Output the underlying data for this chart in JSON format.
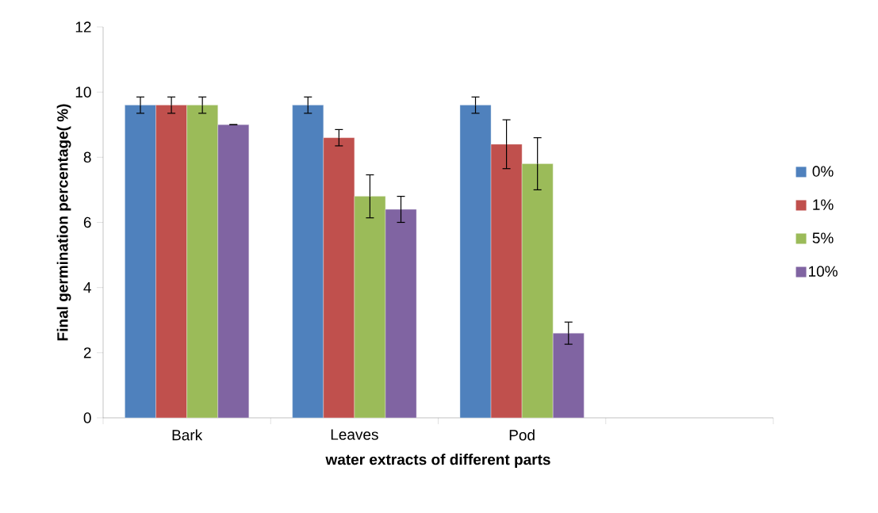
{
  "chart_data": {
    "type": "bar",
    "xlabel": "water extracts of different parts",
    "ylabel": "Final germination percentage( %)",
    "categories": [
      "Bark",
      "Leaves",
      "Pod",
      null
    ],
    "series": [
      {
        "name": "0%",
        "color": "#4f81bd",
        "values": [
          9.6,
          9.6,
          9.6,
          null
        ],
        "errors": [
          0.25,
          0.25,
          0.25,
          null
        ]
      },
      {
        "name": "1%",
        "color": "#c0504d",
        "values": [
          9.6,
          8.6,
          8.4,
          null
        ],
        "errors": [
          0.25,
          0.25,
          0.75,
          null
        ]
      },
      {
        "name": "5%",
        "color": "#9bbb59",
        "values": [
          9.6,
          6.8,
          7.8,
          null
        ],
        "errors": [
          0.25,
          0.66,
          0.8,
          null
        ]
      },
      {
        "name": "10%",
        "color": "#8064a2",
        "values": [
          9.0,
          6.4,
          2.6,
          null
        ],
        "errors": [
          0,
          0.4,
          0.34,
          null
        ]
      }
    ],
    "ylim": [
      0,
      12
    ],
    "yticks": [
      0,
      2,
      4,
      6,
      8,
      10,
      12
    ],
    "legend": "right"
  }
}
